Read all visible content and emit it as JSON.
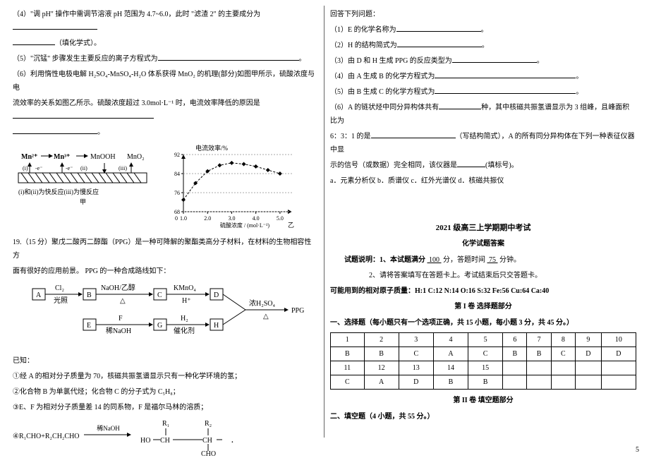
{
  "left": {
    "q4": "（4）\"调 pH\" 操作中需调节溶液 pH 范围为 4.7~6.0，此时 \"滤渣 2\" 的主要成分为",
    "q4_fill_note": "（填化学式）。",
    "q5": "（5）\"沉锰\" 步骤发生主要反应的离子方程式为",
    "q6_1": "（6）利用惰性电极电解 H₂SO₄-MnSO₄-H₂O 体系获得 MnO₂ 的机理(部分)如图甲所示，硫酸浓度与电",
    "q6_2": "流效率的关系如图乙所示。硫酸浓度超过 3.0mol·L⁻¹ 时，电流效率降低的原因是",
    "fig1": {
      "labels": [
        "Mn²⁺",
        "Mn³⁺",
        "MnOOH",
        "MnO₂"
      ],
      "transitions": [
        "(i)",
        "(ii)",
        "(iii)"
      ],
      "e_labels": [
        "-e⁻",
        "-e⁻"
      ],
      "caption": "(i)和(ii)为快反应(iii)为慢反应",
      "sub": "甲"
    },
    "chart": {
      "ylabel": "电流效率/%",
      "xlabel": "硫酸浓度 / (mol·L⁻¹)",
      "sub": "乙",
      "x_ticks": [
        "1.0",
        "2.0",
        "3.0",
        "4.0",
        "5.0"
      ],
      "y_ticks": [
        "68",
        "76",
        "84",
        "92"
      ],
      "y_min": 68,
      "y_max": 92,
      "x_min": 1.0,
      "x_max": 5.5,
      "points": [
        {
          "x": 1.0,
          "y": 73
        },
        {
          "x": 1.5,
          "y": 80
        },
        {
          "x": 2.0,
          "y": 85
        },
        {
          "x": 2.5,
          "y": 87.5
        },
        {
          "x": 3.0,
          "y": 88.5
        },
        {
          "x": 3.5,
          "y": 88
        },
        {
          "x": 4.0,
          "y": 87
        },
        {
          "x": 4.5,
          "y": 85.5
        },
        {
          "x": 5.0,
          "y": 84
        }
      ],
      "grid_color": "#aaaaaa",
      "line_color": "#000000",
      "marker": "diamond"
    },
    "q19_1": "19.（15 分）聚戊二酸丙二醇酯（PPG）是一种可降解的聚酯类高分子材料，在材料的生物相容性方",
    "q19_2": "面有很好的应用前景。 PPG 的一种合成路线如下：",
    "scheme": {
      "nodes": [
        "A",
        "B",
        "C",
        "D",
        "E",
        "F",
        "G",
        "H"
      ],
      "edges": [
        {
          "from": "A",
          "to": "B",
          "top": "Cl₂",
          "bottom": "光照"
        },
        {
          "from": "B",
          "to": "C",
          "top": "NaOH/乙醇",
          "bottom": "△"
        },
        {
          "from": "C",
          "to": "D",
          "top": "KMnO₄",
          "bottom": "H⁺"
        },
        {
          "from": "E",
          "to": "G",
          "top": "F",
          "bottom": "稀NaOH"
        },
        {
          "from": "G",
          "to": "H",
          "top": "H₂",
          "bottom": "催化剂"
        }
      ],
      "final_top": "浓H₂SO₄",
      "final_bottom": "△",
      "final_out": "PPG"
    },
    "known_head": "已知：",
    "known_1": "①经 A 的相对分子质量为 70，核磁共振氢谱显示只有一种化学环境的氢；",
    "known_2": "②化合物 B 为单氯代烃；化合物 C 的分子式为 C₅H₈；",
    "known_3": "③E、F 为相对分子质量差 14 的同系物，F 是福尔马林的溶质；",
    "rxn_left": "④R₁CHO+R₂CH₂CHO",
    "rxn_cond": "稀NaOH",
    "rxn_labels": {
      "R1": "R₁",
      "R2": "R₂",
      "HO": "HO",
      "CH1": "CH",
      "CH2": "CH",
      "CHO": "CHO"
    }
  },
  "right": {
    "head": "回答下列问题：",
    "q1": "（1）E 的化学名称为",
    "q2": "（2）H 的结构简式为",
    "q3": "（3）由 D 和 H 生成 PPG 的反应类型为",
    "q4": "（4）由 A 生成 B 的化学方程式为",
    "q5": "（5）由 B 生成 C 的化学方程式为",
    "q6_1": "（6）A 的链状烃中同分异构体共有",
    "q6_1b": "种，其中核磁共振氢谱显示为 3 组峰，且峰面积比为",
    "q6_2a": "6：3：1 的是",
    "q6_2b": "（写结构简式），A 的所有同分异构体在下列一种表征仪器中显",
    "q6_3": "示的信号（或数据）完全相同，该仪器是",
    "q6_3b": "(填标号)。",
    "opts": "a．元素分析仪  b．质谱仪  c．红外光谱仪  d．核磁共振仪",
    "answers_title": "2021 级高三上学期期中考试",
    "answers_sub": "化学试题答案",
    "note1": "试题说明：1、本试题满分",
    "note1_score": "100",
    "note1b": "分，答题时间",
    "note1_time": "75",
    "note1c": "分钟。",
    "note2": "2、请将答案填写在答题卡上。考试结束后只交答题卡。",
    "atomic": "可能用到的相对原子质量：H:1  C:12  N:14  O:16  S:32  Fe:56  Cu:64  Ca:40",
    "sec1_title": "第 I 卷  选择题部分",
    "sec1_sub": "一、选择题（每小题只有一个选项正确，共 15 小题，每小题 3 分，共 45 分。）",
    "table": {
      "row1": [
        "1",
        "2",
        "3",
        "4",
        "5",
        "6",
        "7",
        "8",
        "9",
        "10"
      ],
      "row2": [
        "B",
        "B",
        "C",
        "A",
        "C",
        "B",
        "B",
        "C",
        "D",
        "D"
      ],
      "row3": [
        "11",
        "12",
        "13",
        "14",
        "15",
        "",
        "",
        "",
        "",
        ""
      ],
      "row4": [
        "C",
        "A",
        "D",
        "B",
        "B",
        "",
        "",
        "",
        "",
        ""
      ]
    },
    "sec2_title": "第 II 卷  填空题部分",
    "sec2_sub": "二、填空题（4 小题，共 55 分。）"
  },
  "pagenum": "5"
}
